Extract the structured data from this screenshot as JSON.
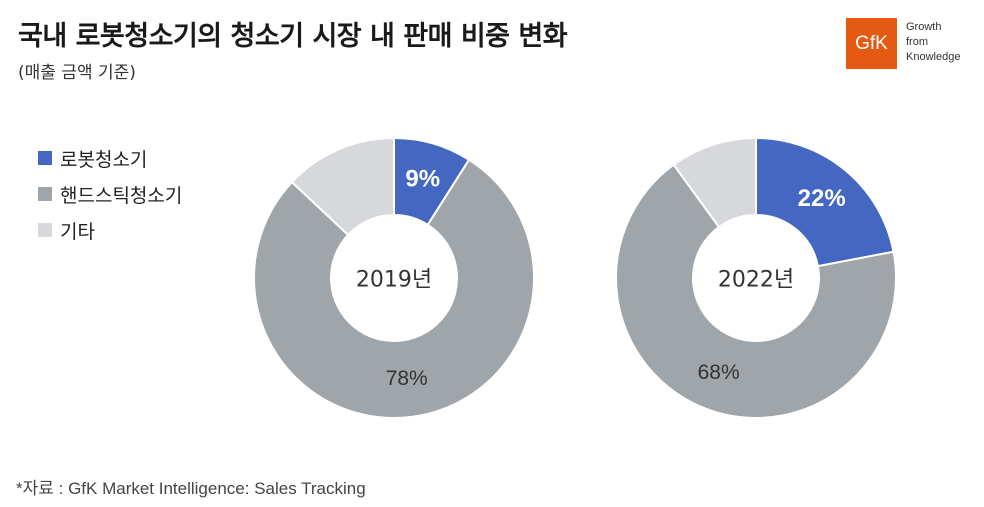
{
  "title": "국내 로봇청소기의 청소기 시장 내 판매 비중 변화",
  "subtitle": "(매출 금액 기준)",
  "brand": {
    "logo_text": "GfK",
    "logo_color": "#E55A12",
    "tagline": [
      "Growth",
      "from",
      "Knowledge"
    ]
  },
  "legend": [
    {
      "label": "로봇청소기",
      "color": "#4468C2"
    },
    {
      "label": "핸드스틱청소기",
      "color": "#A0A5AA"
    },
    {
      "label": "기타",
      "color": "#D6D8DB"
    }
  ],
  "chart_data": [
    {
      "type": "pie",
      "center_label": "2019년",
      "categories": [
        "로봇청소기",
        "핸드스틱청소기",
        "기타"
      ],
      "values": [
        9,
        78,
        13
      ],
      "data_labels": [
        "9%",
        "78%",
        ""
      ],
      "colors": [
        "#4468C2",
        "#A0A5AA",
        "#D6D8DB"
      ]
    },
    {
      "type": "pie",
      "center_label": "2022년",
      "categories": [
        "로봇청소기",
        "핸드스틱청소기",
        "기타"
      ],
      "values": [
        22,
        68,
        10
      ],
      "data_labels": [
        "22%",
        "68%",
        ""
      ],
      "colors": [
        "#4468C2",
        "#A0A5AA",
        "#D6D8DB"
      ]
    }
  ],
  "source": "*자료 : GfK Market Intelligence: Sales Tracking"
}
